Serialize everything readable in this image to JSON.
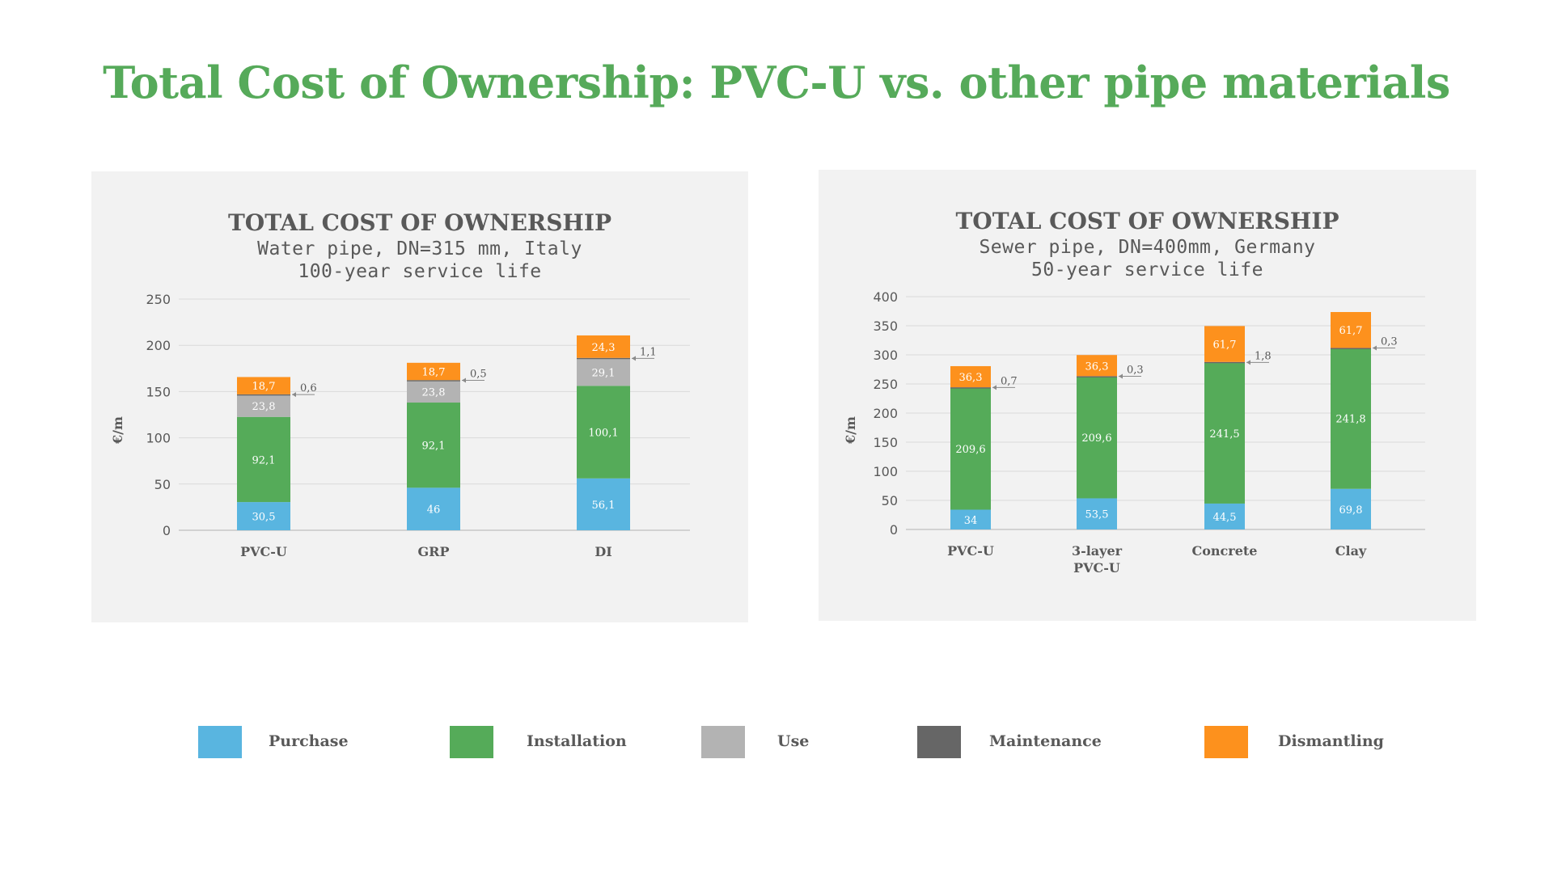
{
  "page": {
    "title": "Total Cost of Ownership: PVC-U vs. other pipe materials",
    "title_color": "#56aa5a"
  },
  "colors": {
    "Purchase": "#59b5e0",
    "Installation": "#55ab59",
    "Use": "#b3b3b3",
    "Maintenance": "#666666",
    "Dismantling": "#fd911d",
    "panel_bg": "#f2f2f2",
    "text": "#595959"
  },
  "legend": {
    "items": [
      {
        "label": "Purchase",
        "color": "#59b5e0"
      },
      {
        "label": "Installation",
        "color": "#55ab59"
      },
      {
        "label": "Use",
        "color": "#b3b3b3"
      },
      {
        "label": "Maintenance",
        "color": "#666666"
      },
      {
        "label": "Dismantling",
        "color": "#fd911d"
      }
    ]
  },
  "chart_data": [
    {
      "type": "bar",
      "stacked": true,
      "title": "TOTAL COST OF OWNERSHIP",
      "subtitle_lines": [
        "Water pipe, DN=315 mm, Italy",
        "100-year service life"
      ],
      "ylabel": "€/m",
      "ylim": [
        0,
        250
      ],
      "yticks": [
        0,
        50,
        100,
        150,
        200,
        250
      ],
      "grid": true,
      "categories": [
        "PVC-U",
        "GRP",
        "DI"
      ],
      "series": [
        {
          "name": "Purchase",
          "values": [
            30.5,
            46,
            56.1
          ],
          "labels": [
            "30,5",
            "46",
            "56,1"
          ]
        },
        {
          "name": "Installation",
          "values": [
            92.1,
            92.1,
            100.1
          ],
          "labels": [
            "92,1",
            "92,1",
            "100,1"
          ]
        },
        {
          "name": "Use",
          "values": [
            23.8,
            23.8,
            29.1
          ],
          "labels": [
            "23,8",
            "23,8",
            "29,1"
          ]
        },
        {
          "name": "Maintenance",
          "values": [
            0.6,
            0.5,
            1.1
          ],
          "labels": [
            "0,6",
            "0,5",
            "1,1"
          ]
        },
        {
          "name": "Dismantling",
          "values": [
            18.7,
            18.7,
            24.3
          ],
          "labels": [
            "18,7",
            "18,7",
            "24,3"
          ]
        }
      ],
      "legend": "bottom"
    },
    {
      "type": "bar",
      "stacked": true,
      "title": "TOTAL COST OF OWNERSHIP",
      "subtitle_lines": [
        "Sewer pipe, DN=400mm, Germany",
        "50-year service life"
      ],
      "ylabel": "€/m",
      "ylim": [
        0,
        400
      ],
      "yticks": [
        0,
        50,
        100,
        150,
        200,
        250,
        300,
        350,
        400
      ],
      "grid": true,
      "categories": [
        "PVC-U",
        "3-layer PVC-U",
        "Concrete",
        "Clay"
      ],
      "category_lines": [
        [
          "PVC-U"
        ],
        [
          "3-layer",
          "PVC-U"
        ],
        [
          "Concrete"
        ],
        [
          "Clay"
        ]
      ],
      "series": [
        {
          "name": "Purchase",
          "values": [
            34,
            53.5,
            44.5,
            69.8
          ],
          "labels": [
            "34",
            "53,5",
            "44,5",
            "69,8"
          ]
        },
        {
          "name": "Installation",
          "values": [
            209.6,
            209.6,
            241.5,
            241.8
          ],
          "labels": [
            "209,6",
            "209,6",
            "241,5",
            "241,8"
          ]
        },
        {
          "name": "Use",
          "values": [
            0,
            0,
            0,
            0
          ],
          "labels": [
            "",
            "",
            "",
            ""
          ]
        },
        {
          "name": "Maintenance",
          "values": [
            0.7,
            0.3,
            1.8,
            0.3
          ],
          "labels": [
            "0,7",
            "0,3",
            "1,8",
            "0,3"
          ]
        },
        {
          "name": "Dismantling",
          "values": [
            36.3,
            36.3,
            61.7,
            61.7
          ],
          "labels": [
            "36,3",
            "36,3",
            "61,7",
            "61,7"
          ]
        }
      ],
      "legend": "bottom"
    }
  ]
}
